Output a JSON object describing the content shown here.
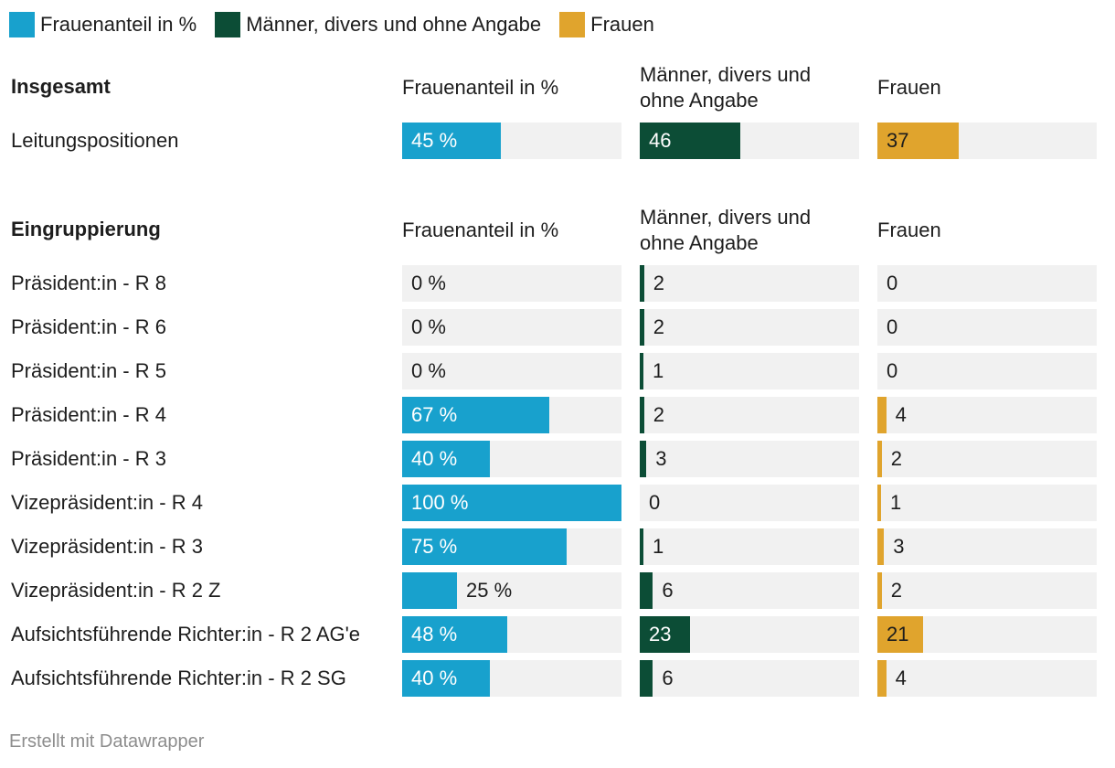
{
  "legend": [
    {
      "label": "Frauenanteil in %",
      "color": "#18a1cd"
    },
    {
      "label": "Männer, divers und ohne Angabe",
      "color": "#0c4d36"
    },
    {
      "label": "Frauen",
      "color": "#e0a42d"
    }
  ],
  "columns": {
    "share": "Frauenanteil in %",
    "men": "Männer, divers und ohne Angabe",
    "women": "Frauen"
  },
  "chart_data": [
    {
      "type": "table",
      "title": "Insgesamt",
      "columns": [
        "Frauenanteil in %",
        "Männer, divers und ohne Angabe",
        "Frauen"
      ],
      "scales": {
        "share": [
          0,
          100
        ],
        "men": [
          0,
          100
        ],
        "women": [
          0,
          100
        ]
      },
      "rows": [
        {
          "label": "Leitungspositionen",
          "share": 45,
          "share_label": "45 %",
          "men": 46,
          "women": 37
        }
      ]
    },
    {
      "type": "table",
      "title": "Eingruppierung",
      "columns": [
        "Frauenanteil in %",
        "Männer, divers und ohne Angabe",
        "Frauen"
      ],
      "scales": {
        "share": [
          0,
          100
        ],
        "men": [
          0,
          100
        ],
        "women": [
          0,
          100
        ]
      },
      "rows": [
        {
          "label": "Präsident:in - R 8",
          "share": 0,
          "share_label": "0 %",
          "men": 2,
          "women": 0
        },
        {
          "label": "Präsident:in - R 6",
          "share": 0,
          "share_label": "0 %",
          "men": 2,
          "women": 0
        },
        {
          "label": "Präsident:in - R 5",
          "share": 0,
          "share_label": "0 %",
          "men": 1,
          "women": 0
        },
        {
          "label": "Präsident:in - R 4",
          "share": 67,
          "share_label": "67 %",
          "men": 2,
          "women": 4
        },
        {
          "label": "Präsident:in - R 3",
          "share": 40,
          "share_label": "40 %",
          "men": 3,
          "women": 2
        },
        {
          "label": "Vizepräsident:in - R 4",
          "share": 100,
          "share_label": "100 %",
          "men": 0,
          "women": 1
        },
        {
          "label": "Vizepräsident:in - R 3",
          "share": 75,
          "share_label": "75 %",
          "men": 1,
          "women": 3
        },
        {
          "label": "Vizepräsident:in - R 2 Z",
          "share": 25,
          "share_label": "25 %",
          "men": 6,
          "women": 2
        },
        {
          "label": "Aufsichtsführende Richter:in - R 2 AG'e",
          "share": 48,
          "share_label": "48 %",
          "men": 23,
          "women": 21
        },
        {
          "label": "Aufsichtsführende Richter:in - R 2 SG",
          "share": 40,
          "share_label": "40 %",
          "men": 6,
          "women": 4
        }
      ]
    }
  ],
  "footer": "Erstellt mit Datawrapper"
}
